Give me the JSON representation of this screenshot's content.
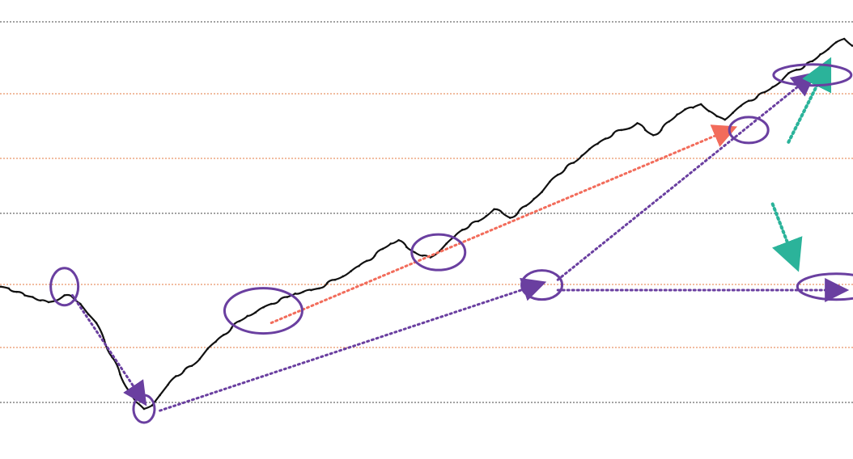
{
  "chart_data": {
    "type": "line",
    "title": "",
    "xlabel": "",
    "ylabel": "",
    "grid": true,
    "legend": "none",
    "colors": {
      "price_line": "#111111",
      "annotation_primary": "#6a3fa0",
      "annotation_secondary": "#f26c5b",
      "annotation_tertiary": "#2bb39a",
      "grid_black": "#333333",
      "grid_orange": "#e06a2e"
    },
    "series": [
      {
        "values": [
          0.0,
          -0.01,
          -0.03,
          -0.05,
          -0.06,
          -0.08,
          -0.09,
          -0.08,
          -0.05,
          -0.06,
          -0.1,
          -0.16,
          -0.21,
          -0.31,
          -0.41,
          -0.51,
          -0.6,
          -0.67,
          -0.71,
          -0.69,
          -0.63,
          -0.57,
          -0.52,
          -0.49,
          -0.46,
          -0.42,
          -0.36,
          -0.32,
          -0.28,
          -0.24,
          -0.2,
          -0.17,
          -0.15,
          -0.12,
          -0.1,
          -0.08,
          -0.06,
          -0.04,
          -0.03,
          -0.02,
          -0.01,
          0.02,
          0.04,
          0.06,
          0.09,
          0.12,
          0.15,
          0.18,
          0.22,
          0.25,
          0.27,
          0.23,
          0.2,
          0.18,
          0.17,
          0.2,
          0.25,
          0.29,
          0.33,
          0.36,
          0.38,
          0.41,
          0.45,
          0.43,
          0.4,
          0.43,
          0.47,
          0.51,
          0.55,
          0.61,
          0.65,
          0.69,
          0.72,
          0.76,
          0.8,
          0.83,
          0.86,
          0.89,
          0.91,
          0.92,
          0.95,
          0.91,
          0.88,
          0.91,
          0.96,
          1.0,
          1.03,
          1.04,
          1.06,
          1.02,
          0.99,
          0.97,
          1.01,
          1.05,
          1.08,
          1.1,
          1.13,
          1.16,
          1.19,
          1.24,
          1.26,
          1.28,
          1.31,
          1.35,
          1.38,
          1.42,
          1.44,
          1.4
        ]
      }
    ],
    "annotations": [
      {
        "type": "circle",
        "x": 8,
        "y": 0.0
      },
      {
        "type": "circle",
        "x": 18,
        "y": -0.71
      },
      {
        "type": "circle",
        "x": 33,
        "y": -0.14
      },
      {
        "type": "circle",
        "x": 55,
        "y": 0.2
      },
      {
        "type": "circle",
        "x": 68,
        "y": 0.01
      },
      {
        "type": "circle",
        "x": 94,
        "y": 0.91
      },
      {
        "type": "circle",
        "x": 102,
        "y": 1.23
      },
      {
        "type": "circle",
        "x": 105,
        "y": 0.0
      },
      {
        "type": "arrow",
        "from": [
          9,
          -0.05
        ],
        "to": [
          18,
          -0.67
        ],
        "color": "annotation_primary"
      },
      {
        "type": "arrow",
        "from": [
          20,
          -0.72
        ],
        "to": [
          68,
          0.02
        ],
        "color": "annotation_primary"
      },
      {
        "type": "arrow",
        "from": [
          34,
          -0.21
        ],
        "to": [
          92,
          0.92
        ],
        "color": "annotation_secondary"
      },
      {
        "type": "arrow",
        "from": [
          70,
          0.04
        ],
        "to": [
          102,
          1.23
        ],
        "color": "annotation_primary"
      },
      {
        "type": "arrow",
        "from": [
          70,
          -0.02
        ],
        "to": [
          106,
          -0.02
        ],
        "color": "annotation_primary"
      },
      {
        "type": "arrow",
        "from": [
          99,
          0.84
        ],
        "to": [
          104,
          1.3
        ],
        "color": "annotation_tertiary"
      },
      {
        "type": "arrow",
        "from": [
          97,
          0.48
        ],
        "to": [
          100,
          0.12
        ],
        "color": "annotation_tertiary"
      }
    ]
  }
}
